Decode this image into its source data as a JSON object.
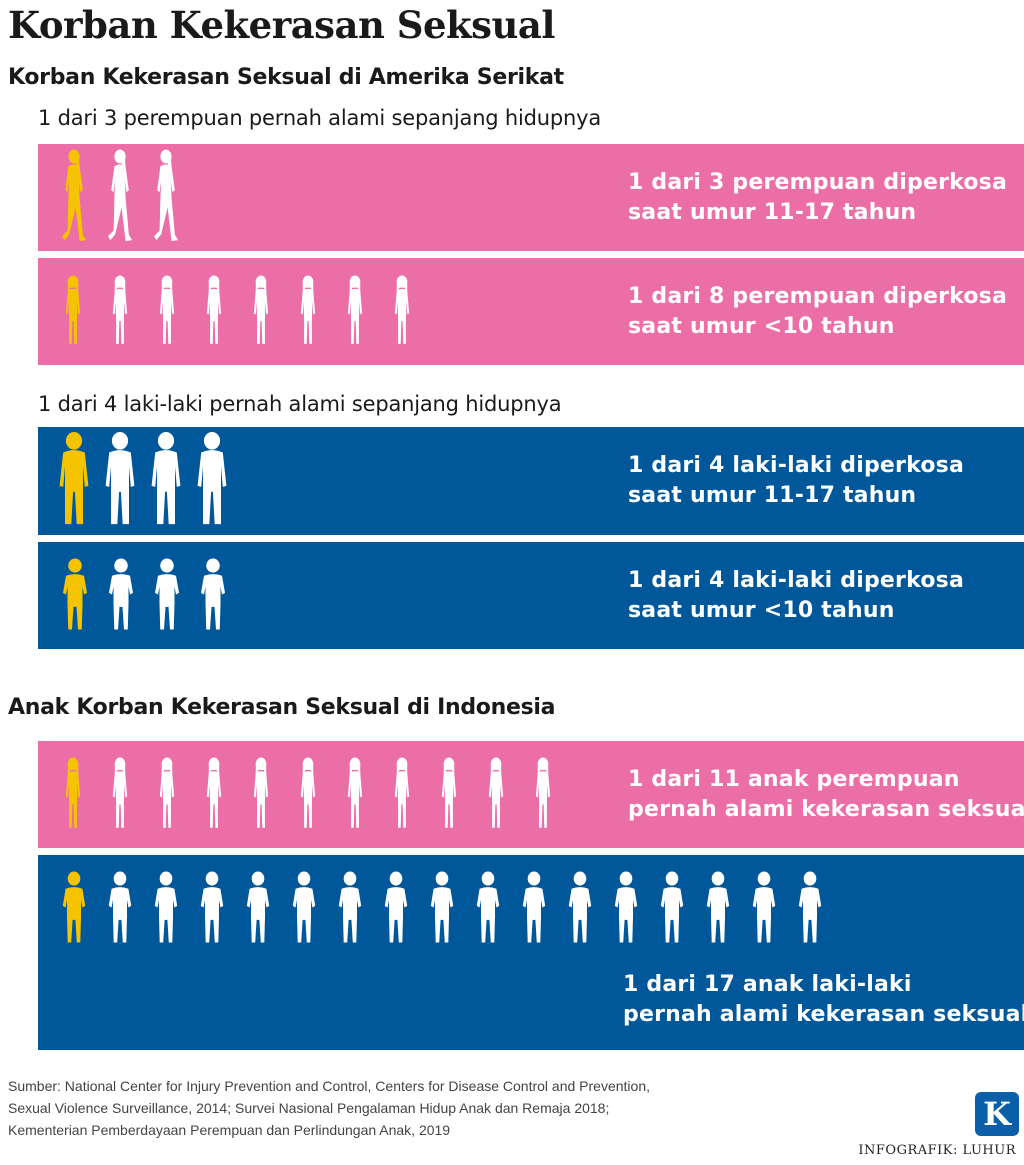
{
  "title": "Korban Kekerasan Seksual",
  "us": {
    "heading": "Korban Kekerasan Seksual di Amerika Serikat",
    "women_intro": "1 dari 3 perempuan pernah alami sepanjang hidupnya",
    "men_intro": "1 dari 4 laki-laki pernah alami sepanjang hidupnya",
    "bands": [
      {
        "line1": "1 dari 3 perempuan diperkosa",
        "line2": "saat umur 11-17 tahun",
        "ratio_highlighted": 1,
        "ratio_total": 3,
        "figure": "woman-icon",
        "color": "#eb6ea6"
      },
      {
        "line1": "1 dari 8 perempuan diperkosa",
        "line2": "saat umur <10 tahun",
        "ratio_highlighted": 1,
        "ratio_total": 8,
        "figure": "girl-icon",
        "color": "#eb6ea6"
      },
      {
        "line1": "1 dari 4 laki-laki diperkosa",
        "line2": "saat umur 11-17 tahun",
        "ratio_highlighted": 1,
        "ratio_total": 4,
        "figure": "man-icon",
        "color": "#00589b"
      },
      {
        "line1": "1 dari 4 laki-laki diperkosa",
        "line2": "saat umur <10 tahun",
        "ratio_highlighted": 1,
        "ratio_total": 4,
        "figure": "boy-icon",
        "color": "#00589b"
      }
    ]
  },
  "indonesia": {
    "heading": "Anak Korban Kekerasan Seksual di Indonesia",
    "bands": [
      {
        "line1": "1 dari 11 anak perempuan",
        "line2": "pernah alami kekerasan seksual",
        "ratio_highlighted": 1,
        "ratio_total": 11,
        "figure": "girl-icon",
        "color": "#eb6ea6"
      },
      {
        "line1": "1 dari 17 anak laki-laki",
        "line2": "pernah alami kekerasan seksual",
        "ratio_highlighted": 1,
        "ratio_total": 17,
        "figure": "boy-icon",
        "color": "#00589b"
      }
    ]
  },
  "colors": {
    "highlight": "#f5c300",
    "figure": "#ffffff",
    "pink": "#eb6ea6",
    "blue": "#00589b"
  },
  "source": {
    "lines": [
      "Sumber: National Center for Injury Prevention and Control, Centers for Disease Control and Prevention,",
      "Sexual Violence Surveillance, 2014; Survei Nasional Pengalaman Hidup Anak dan Remaja 2018;",
      "Kementerian Pemberdayaan Perempuan dan Perlindungan Anak, 2019"
    ]
  },
  "brand": {
    "logo_letter": "K",
    "credit": "INFOGRAFIK: LUHUR"
  }
}
